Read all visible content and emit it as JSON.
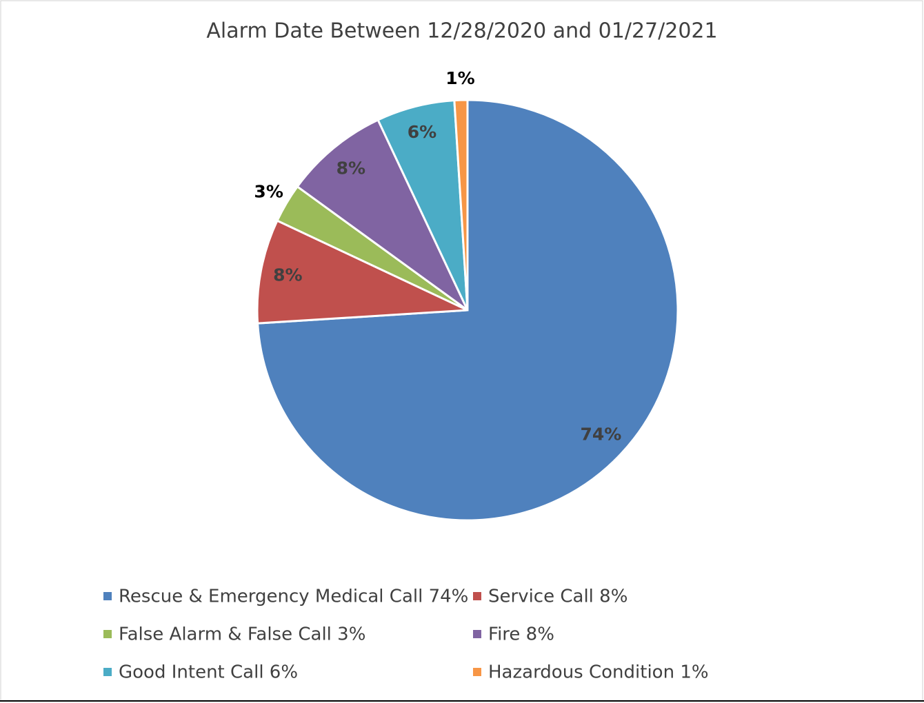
{
  "chart_data": {
    "type": "pie",
    "title": "Alarm Date Between 12/28/2020 and 01/27/2021",
    "categories": [
      "Rescue & Emergency Medical Call 74%",
      "Service Call 8%",
      "False Alarm & False Call 3%",
      "Fire 8%",
      "Good Intent Call 6%",
      "Hazardous Condition 1%"
    ],
    "values": [
      74,
      8,
      3,
      8,
      6,
      1
    ],
    "value_labels": [
      "74%",
      "8%",
      "3%",
      "8%",
      "6%",
      "1%"
    ],
    "colors": [
      "#4f81bd",
      "#c0504d",
      "#9bbb59",
      "#8064a2",
      "#4bacc6",
      "#f79646"
    ],
    "legend": "bottom"
  }
}
